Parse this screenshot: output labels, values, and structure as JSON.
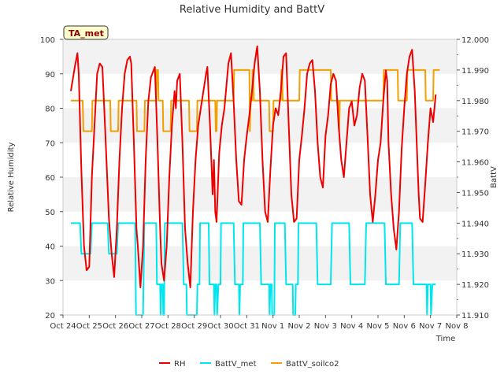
{
  "chart_data": {
    "type": "line",
    "title": "Relative Humidity and BattV",
    "badge": "TA_met",
    "xlabel": "Time",
    "ylabel": "Relative Humidity",
    "y2label": "BattV",
    "ylim": [
      20,
      100
    ],
    "y2lim": [
      11.91,
      12.0
    ],
    "grid": "horizontal bands",
    "legend_position": "bottom",
    "x_ticks": [
      "Oct 24",
      "Oct 25",
      "Oct 26",
      "Oct 27",
      "Oct 28",
      "Oct 29",
      "Oct 30",
      "Oct 31",
      "Nov 1",
      "Nov 2",
      "Nov 3",
      "Nov 4",
      "Nov 5",
      "Nov 6",
      "Nov 7",
      "Nov 8"
    ],
    "y_ticks": [
      "20",
      "30",
      "40",
      "50",
      "60",
      "70",
      "80",
      "90",
      "100"
    ],
    "y2_ticks": [
      "11.910",
      "11.920",
      "11.930",
      "11.940",
      "11.950",
      "11.960",
      "11.970",
      "11.980",
      "11.990",
      "12.000"
    ],
    "series": [
      {
        "name": "RH",
        "axis": "left",
        "color": "#ee0000",
        "points": [
          [
            0.3,
            85
          ],
          [
            0.45,
            92
          ],
          [
            0.55,
            96
          ],
          [
            0.6,
            90
          ],
          [
            0.7,
            62
          ],
          [
            0.8,
            40
          ],
          [
            0.9,
            33
          ],
          [
            1.0,
            34
          ],
          [
            1.1,
            60
          ],
          [
            1.2,
            75
          ],
          [
            1.3,
            90
          ],
          [
            1.4,
            93
          ],
          [
            1.5,
            92
          ],
          [
            1.6,
            75
          ],
          [
            1.75,
            48
          ],
          [
            1.85,
            38
          ],
          [
            1.95,
            31
          ],
          [
            2.05,
            45
          ],
          [
            2.15,
            65
          ],
          [
            2.25,
            80
          ],
          [
            2.35,
            90
          ],
          [
            2.45,
            94
          ],
          [
            2.55,
            95
          ],
          [
            2.6,
            93
          ],
          [
            2.7,
            70
          ],
          [
            2.8,
            45
          ],
          [
            2.85,
            40
          ],
          [
            2.95,
            28
          ],
          [
            3.05,
            40
          ],
          [
            3.15,
            65
          ],
          [
            3.25,
            82
          ],
          [
            3.35,
            89
          ],
          [
            3.45,
            91
          ],
          [
            3.5,
            92
          ],
          [
            3.6,
            70
          ],
          [
            3.7,
            45
          ],
          [
            3.75,
            35
          ],
          [
            3.85,
            30
          ],
          [
            3.95,
            40
          ],
          [
            4.05,
            60
          ],
          [
            4.15,
            75
          ],
          [
            4.25,
            85
          ],
          [
            4.3,
            80
          ],
          [
            4.35,
            88
          ],
          [
            4.45,
            90
          ],
          [
            4.55,
            70
          ],
          [
            4.65,
            45
          ],
          [
            4.75,
            35
          ],
          [
            4.85,
            28
          ],
          [
            4.95,
            50
          ],
          [
            5.05,
            65
          ],
          [
            5.15,
            75
          ],
          [
            5.25,
            80
          ],
          [
            5.35,
            85
          ],
          [
            5.45,
            90
          ],
          [
            5.5,
            92
          ],
          [
            5.6,
            75
          ],
          [
            5.7,
            55
          ],
          [
            5.75,
            65
          ],
          [
            5.8,
            50
          ],
          [
            5.85,
            47
          ],
          [
            5.95,
            67
          ],
          [
            6.05,
            75
          ],
          [
            6.15,
            80
          ],
          [
            6.3,
            93
          ],
          [
            6.4,
            96
          ],
          [
            6.5,
            82
          ],
          [
            6.6,
            65
          ],
          [
            6.7,
            53
          ],
          [
            6.8,
            52
          ],
          [
            6.9,
            65
          ],
          [
            7.0,
            72
          ],
          [
            7.1,
            78
          ],
          [
            7.2,
            85
          ],
          [
            7.3,
            93
          ],
          [
            7.4,
            98
          ],
          [
            7.5,
            85
          ],
          [
            7.6,
            65
          ],
          [
            7.7,
            50
          ],
          [
            7.8,
            47
          ],
          [
            7.9,
            62
          ],
          [
            8.0,
            75
          ],
          [
            8.1,
            80
          ],
          [
            8.2,
            78
          ],
          [
            8.3,
            85
          ],
          [
            8.4,
            95
          ],
          [
            8.5,
            96
          ],
          [
            8.6,
            75
          ],
          [
            8.7,
            55
          ],
          [
            8.8,
            47
          ],
          [
            8.9,
            48
          ],
          [
            9.0,
            65
          ],
          [
            9.1,
            72
          ],
          [
            9.2,
            80
          ],
          [
            9.3,
            90
          ],
          [
            9.4,
            93
          ],
          [
            9.5,
            94
          ],
          [
            9.6,
            85
          ],
          [
            9.7,
            70
          ],
          [
            9.8,
            60
          ],
          [
            9.9,
            57
          ],
          [
            10.0,
            72
          ],
          [
            10.1,
            78
          ],
          [
            10.2,
            87
          ],
          [
            10.3,
            90
          ],
          [
            10.4,
            88
          ],
          [
            10.5,
            75
          ],
          [
            10.6,
            65
          ],
          [
            10.7,
            60
          ],
          [
            10.8,
            70
          ],
          [
            10.9,
            80
          ],
          [
            11.0,
            82
          ],
          [
            11.1,
            75
          ],
          [
            11.2,
            78
          ],
          [
            11.3,
            86
          ],
          [
            11.4,
            90
          ],
          [
            11.5,
            88
          ],
          [
            11.6,
            72
          ],
          [
            11.7,
            55
          ],
          [
            11.8,
            47
          ],
          [
            11.9,
            55
          ],
          [
            12.0,
            65
          ],
          [
            12.1,
            70
          ],
          [
            12.2,
            82
          ],
          [
            12.3,
            91
          ],
          [
            12.35,
            88
          ],
          [
            12.4,
            70
          ],
          [
            12.5,
            55
          ],
          [
            12.6,
            45
          ],
          [
            12.7,
            39
          ],
          [
            12.8,
            50
          ],
          [
            12.9,
            68
          ],
          [
            13.0,
            80
          ],
          [
            13.1,
            90
          ],
          [
            13.2,
            95
          ],
          [
            13.3,
            97
          ],
          [
            13.4,
            85
          ],
          [
            13.5,
            65
          ],
          [
            13.55,
            55
          ],
          [
            13.6,
            48
          ],
          [
            13.7,
            47
          ],
          [
            13.8,
            58
          ],
          [
            13.9,
            70
          ],
          [
            14.0,
            80
          ],
          [
            14.1,
            76
          ],
          [
            14.2,
            84
          ]
        ]
      },
      {
        "name": "BattV_met",
        "axis": "right",
        "color": "#00e5ee",
        "points": [
          [
            0.3,
            11.94
          ],
          [
            0.65,
            11.94
          ],
          [
            0.7,
            11.93
          ],
          [
            1.05,
            11.93
          ],
          [
            1.1,
            11.94
          ],
          [
            1.7,
            11.94
          ],
          [
            1.75,
            11.93
          ],
          [
            2.05,
            11.93
          ],
          [
            2.1,
            11.94
          ],
          [
            2.75,
            11.94
          ],
          [
            2.78,
            11.91
          ],
          [
            3.05,
            11.91
          ],
          [
            3.1,
            11.94
          ],
          [
            3.55,
            11.94
          ],
          [
            3.58,
            11.92
          ],
          [
            3.7,
            11.92
          ],
          [
            3.72,
            11.91
          ],
          [
            3.75,
            11.92
          ],
          [
            3.8,
            11.92
          ],
          [
            3.82,
            11.91
          ],
          [
            3.85,
            11.91
          ],
          [
            3.88,
            11.94
          ],
          [
            4.55,
            11.94
          ],
          [
            4.6,
            11.92
          ],
          [
            4.7,
            11.92
          ],
          [
            4.72,
            11.91
          ],
          [
            5.1,
            11.91
          ],
          [
            5.12,
            11.92
          ],
          [
            5.2,
            11.92
          ],
          [
            5.22,
            11.94
          ],
          [
            5.55,
            11.94
          ],
          [
            5.58,
            11.92
          ],
          [
            5.75,
            11.92
          ],
          [
            5.77,
            11.91
          ],
          [
            5.8,
            11.92
          ],
          [
            5.85,
            11.92
          ],
          [
            5.87,
            11.91
          ],
          [
            5.92,
            11.92
          ],
          [
            6.0,
            11.92
          ],
          [
            6.02,
            11.94
          ],
          [
            6.5,
            11.94
          ],
          [
            6.55,
            11.92
          ],
          [
            6.7,
            11.92
          ],
          [
            6.72,
            11.91
          ],
          [
            6.75,
            11.92
          ],
          [
            6.85,
            11.92
          ],
          [
            6.87,
            11.94
          ],
          [
            7.5,
            11.94
          ],
          [
            7.55,
            11.92
          ],
          [
            7.85,
            11.92
          ],
          [
            7.87,
            11.91
          ],
          [
            7.9,
            11.92
          ],
          [
            7.95,
            11.92
          ],
          [
            7.97,
            11.91
          ],
          [
            8.05,
            11.91
          ],
          [
            8.07,
            11.94
          ],
          [
            8.45,
            11.94
          ],
          [
            8.5,
            11.92
          ],
          [
            8.75,
            11.92
          ],
          [
            8.77,
            11.91
          ],
          [
            8.85,
            11.91
          ],
          [
            8.87,
            11.92
          ],
          [
            8.95,
            11.92
          ],
          [
            8.97,
            11.94
          ],
          [
            9.65,
            11.94
          ],
          [
            9.7,
            11.92
          ],
          [
            10.2,
            11.92
          ],
          [
            10.25,
            11.94
          ],
          [
            10.9,
            11.94
          ],
          [
            10.95,
            11.92
          ],
          [
            11.5,
            11.92
          ],
          [
            11.55,
            11.94
          ],
          [
            12.25,
            11.94
          ],
          [
            12.3,
            11.92
          ],
          [
            12.8,
            11.92
          ],
          [
            12.85,
            11.94
          ],
          [
            13.3,
            11.94
          ],
          [
            13.35,
            11.92
          ],
          [
            13.85,
            11.92
          ],
          [
            13.87,
            11.91
          ],
          [
            13.9,
            11.92
          ],
          [
            14.0,
            11.92
          ],
          [
            14.02,
            11.91
          ],
          [
            14.07,
            11.92
          ],
          [
            14.2,
            11.92
          ]
        ]
      },
      {
        "name": "BattV_soilco2",
        "axis": "right",
        "color": "#f0a000",
        "points": [
          [
            0.3,
            11.98
          ],
          [
            0.75,
            11.98
          ],
          [
            0.78,
            11.97
          ],
          [
            1.1,
            11.97
          ],
          [
            1.12,
            11.98
          ],
          [
            1.8,
            11.98
          ],
          [
            1.82,
            11.97
          ],
          [
            2.1,
            11.97
          ],
          [
            2.12,
            11.98
          ],
          [
            2.8,
            11.98
          ],
          [
            2.82,
            11.97
          ],
          [
            3.1,
            11.97
          ],
          [
            3.12,
            11.98
          ],
          [
            3.55,
            11.98
          ],
          [
            3.57,
            11.99
          ],
          [
            3.62,
            11.99
          ],
          [
            3.64,
            11.98
          ],
          [
            3.8,
            11.98
          ],
          [
            3.82,
            11.97
          ],
          [
            4.1,
            11.97
          ],
          [
            4.12,
            11.98
          ],
          [
            4.8,
            11.98
          ],
          [
            4.82,
            11.97
          ],
          [
            5.1,
            11.97
          ],
          [
            5.12,
            11.98
          ],
          [
            5.8,
            11.98
          ],
          [
            5.82,
            11.97
          ],
          [
            5.85,
            11.97
          ],
          [
            5.87,
            11.98
          ],
          [
            6.5,
            11.98
          ],
          [
            6.52,
            11.99
          ],
          [
            7.1,
            11.99
          ],
          [
            7.12,
            11.97
          ],
          [
            7.15,
            11.98
          ],
          [
            7.2,
            11.98
          ],
          [
            7.22,
            11.99
          ],
          [
            7.25,
            11.99
          ],
          [
            7.27,
            11.98
          ],
          [
            7.85,
            11.98
          ],
          [
            7.87,
            11.97
          ],
          [
            8.0,
            11.97
          ],
          [
            8.02,
            11.98
          ],
          [
            8.3,
            11.98
          ],
          [
            8.32,
            11.99
          ],
          [
            8.35,
            11.99
          ],
          [
            8.37,
            11.98
          ],
          [
            9.0,
            11.98
          ],
          [
            9.02,
            11.99
          ],
          [
            10.2,
            11.99
          ],
          [
            10.22,
            11.98
          ],
          [
            10.5,
            11.98
          ],
          [
            10.52,
            11.97
          ],
          [
            10.55,
            11.98
          ],
          [
            12.2,
            11.98
          ],
          [
            12.22,
            11.99
          ],
          [
            12.75,
            11.99
          ],
          [
            12.77,
            11.98
          ],
          [
            13.1,
            11.98
          ],
          [
            13.12,
            11.99
          ],
          [
            13.8,
            11.99
          ],
          [
            13.82,
            11.98
          ],
          [
            14.1,
            11.98
          ],
          [
            14.12,
            11.99
          ],
          [
            14.35,
            11.99
          ]
        ]
      }
    ]
  }
}
